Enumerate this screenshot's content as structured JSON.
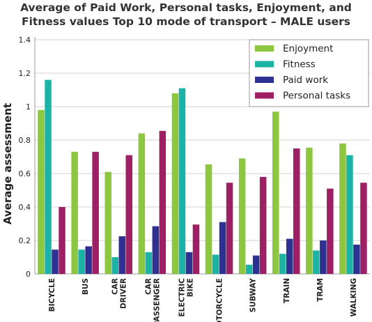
{
  "chart_data": {
    "type": "bar",
    "title_lines": [
      "Average of Paid Work, Personal tasks, Enjoyment, and",
      "Fitness values Top 10 mode of transport – MALE users"
    ],
    "xlabel": "",
    "ylabel": "Average assessment",
    "ylim": [
      0,
      1.4
    ],
    "yticks": [
      "0",
      "0.2",
      "0.4",
      "0.6",
      "0.8",
      "1",
      "1.2",
      "1.4"
    ],
    "grid": true,
    "legend_position": "top-right",
    "categories": [
      [
        "BICYCLE"
      ],
      [
        "BUS"
      ],
      [
        "CAR",
        "DRIVER"
      ],
      [
        "CAR",
        "PASSENGER"
      ],
      [
        "ELECTRIC",
        "BIKE"
      ],
      [
        "OTORCYCLE"
      ],
      [
        "SUBWAY"
      ],
      [
        "TRAIN"
      ],
      [
        "TRAM"
      ],
      [
        "WALKING"
      ]
    ],
    "series": [
      {
        "name": "Enjoyment",
        "color": "#8dc63f",
        "values": [
          0.98,
          0.73,
          0.61,
          0.84,
          1.08,
          0.655,
          0.69,
          0.97,
          0.755,
          0.78
        ]
      },
      {
        "name": "Fitness",
        "color": "#1ab3a6",
        "values": [
          1.16,
          0.145,
          0.1,
          0.13,
          1.11,
          0.115,
          0.055,
          0.12,
          0.14,
          0.71
        ]
      },
      {
        "name": "Paid work",
        "color": "#2e3192",
        "values": [
          0.145,
          0.165,
          0.225,
          0.285,
          0.13,
          0.31,
          0.11,
          0.21,
          0.2,
          0.175
        ]
      },
      {
        "name": "Personal tasks",
        "color": "#9e1f63",
        "values": [
          0.4,
          0.73,
          0.71,
          0.855,
          0.295,
          0.545,
          0.58,
          0.75,
          0.51,
          0.545
        ]
      }
    ]
  }
}
